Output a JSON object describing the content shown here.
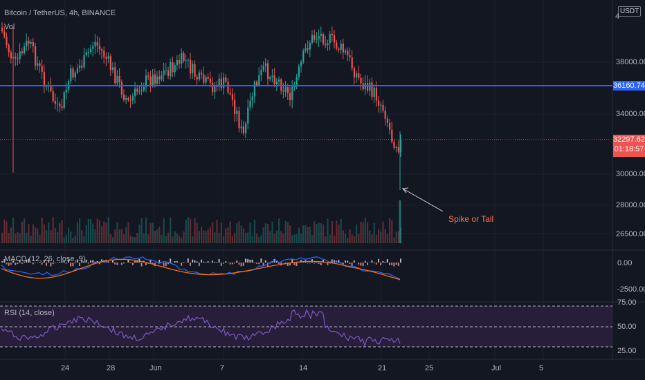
{
  "header": {
    "symbol_title": "Bitcoin / TetherUS, 4h, BINANCE",
    "volume_label": "Vol",
    "currency_button": "USDT",
    "top_price_partial": "4"
  },
  "price_axis": {
    "ticks": [
      "38000.00",
      "34000.00",
      "30000.00",
      "28000.00",
      "26500.00"
    ]
  },
  "horizontal_line_price": "36160.74",
  "current_price": {
    "value": "32297.62",
    "countdown": "01:18:57"
  },
  "annotation": {
    "text": "Spike or Tail",
    "color": "#ff7043"
  },
  "macd": {
    "title": "MACD (12, 26, close, 9)",
    "ticks": [
      "0.00",
      "-2500.00"
    ]
  },
  "rsi": {
    "title": "RSI (14, close)",
    "ticks": [
      "75.00",
      "50.00",
      "25.00"
    ]
  },
  "time_axis": {
    "labels": [
      "24",
      "28",
      "Jun",
      "7",
      "14",
      "21",
      "25",
      "Jul",
      "5"
    ]
  },
  "colors": {
    "background": "#131722",
    "up": "#26a69a",
    "down": "#ef5350",
    "hline": "#2962ff",
    "macd_line": "#2962ff",
    "signal_line": "#ff6d00",
    "rsi_line": "#7e57c2",
    "rsi_band": "#2a1f3d"
  }
}
